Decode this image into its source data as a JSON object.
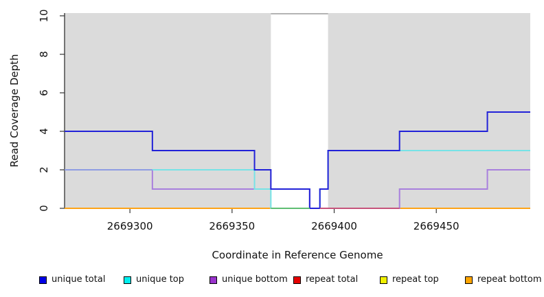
{
  "axes": {
    "x_label": "Coordinate in Reference Genome",
    "y_label": "Read Coverage Depth",
    "x_tick_labels": [
      "2669300",
      "2669350",
      "2669400",
      "2669450"
    ],
    "y_tick_labels": [
      "0",
      "2",
      "4",
      "6",
      "8",
      "10"
    ]
  },
  "legend": {
    "items": [
      {
        "label": "unique total",
        "swatch_color": "#0000E6"
      },
      {
        "label": "unique top",
        "swatch_color": "#00EFEF"
      },
      {
        "label": "unique bottom",
        "swatch_color": "#9933CC"
      },
      {
        "label": "repeat total",
        "swatch_color": "#E60000"
      },
      {
        "label": "repeat top",
        "swatch_color": "#F0F000"
      },
      {
        "label": "repeat bottom",
        "swatch_color": "#FFA500"
      }
    ]
  },
  "chart_data": {
    "type": "line",
    "subtype": "step-post",
    "title": "",
    "xlabel": "Coordinate in Reference Genome",
    "ylabel": "Read Coverage Depth",
    "xlim": [
      2669268,
      2669496
    ],
    "ylim": [
      0,
      10.15
    ],
    "x_ticks": [
      2669300,
      2669350,
      2669400,
      2669450
    ],
    "y_ticks": [
      0,
      2,
      4,
      6,
      8,
      10
    ],
    "grid": false,
    "legend_position": "bottom",
    "plot_background": "#ffffff",
    "shaded_regions": [
      {
        "from": 2669268,
        "to": 2669369,
        "fill": "#DBDBDB"
      },
      {
        "from": 2669397,
        "to": 2669496,
        "fill": "#DBDBDB"
      }
    ],
    "gap_region": {
      "from": 2669369,
      "to": 2669397,
      "fill": "#ffffff",
      "top_border_color": "#9A9A9A"
    },
    "series": [
      {
        "name": "repeat total",
        "color": "#E60000",
        "steps": [
          [
            2669268,
            0
          ]
        ]
      },
      {
        "name": "repeat top",
        "color": "#F0F000",
        "steps": [
          [
            2669268,
            0
          ]
        ]
      },
      {
        "name": "repeat bottom",
        "color": "#FFA317",
        "steps": [
          [
            2669268,
            0
          ]
        ]
      },
      {
        "name": "unique bottom",
        "color": "#A87FDD",
        "steps": [
          [
            2669268,
            2
          ],
          [
            2669311,
            1
          ],
          [
            2669388,
            0
          ],
          [
            2669432,
            1
          ],
          [
            2669475,
            2
          ]
        ]
      },
      {
        "name": "unique top",
        "color": "#76E3E6",
        "steps": [
          [
            2669268,
            2
          ],
          [
            2669361,
            1
          ],
          [
            2669369,
            0
          ],
          [
            2669393,
            1
          ],
          [
            2669397,
            3
          ]
        ]
      },
      {
        "name": "unique total",
        "color": "#2121D8",
        "steps": [
          [
            2669268,
            4
          ],
          [
            2669311,
            3
          ],
          [
            2669361,
            2
          ],
          [
            2669369,
            1
          ],
          [
            2669388,
            0
          ],
          [
            2669393,
            1
          ],
          [
            2669397,
            3
          ],
          [
            2669432,
            4
          ],
          [
            2669475,
            5
          ]
        ]
      }
    ],
    "overlap_blend_segments": [
      {
        "y": 2,
        "from": 2669268,
        "to": 2669311,
        "color": "#8E9CE3",
        "note": "unique top + unique bottom overlap"
      },
      {
        "y": 0,
        "from": 2669369,
        "to": 2669388,
        "color": "#5EBD72",
        "note": "unique top over repeat lines"
      },
      {
        "y": 0,
        "from": 2669393,
        "to": 2669432,
        "color": "#C6537B",
        "note": "unique bottom over repeat total"
      }
    ]
  }
}
